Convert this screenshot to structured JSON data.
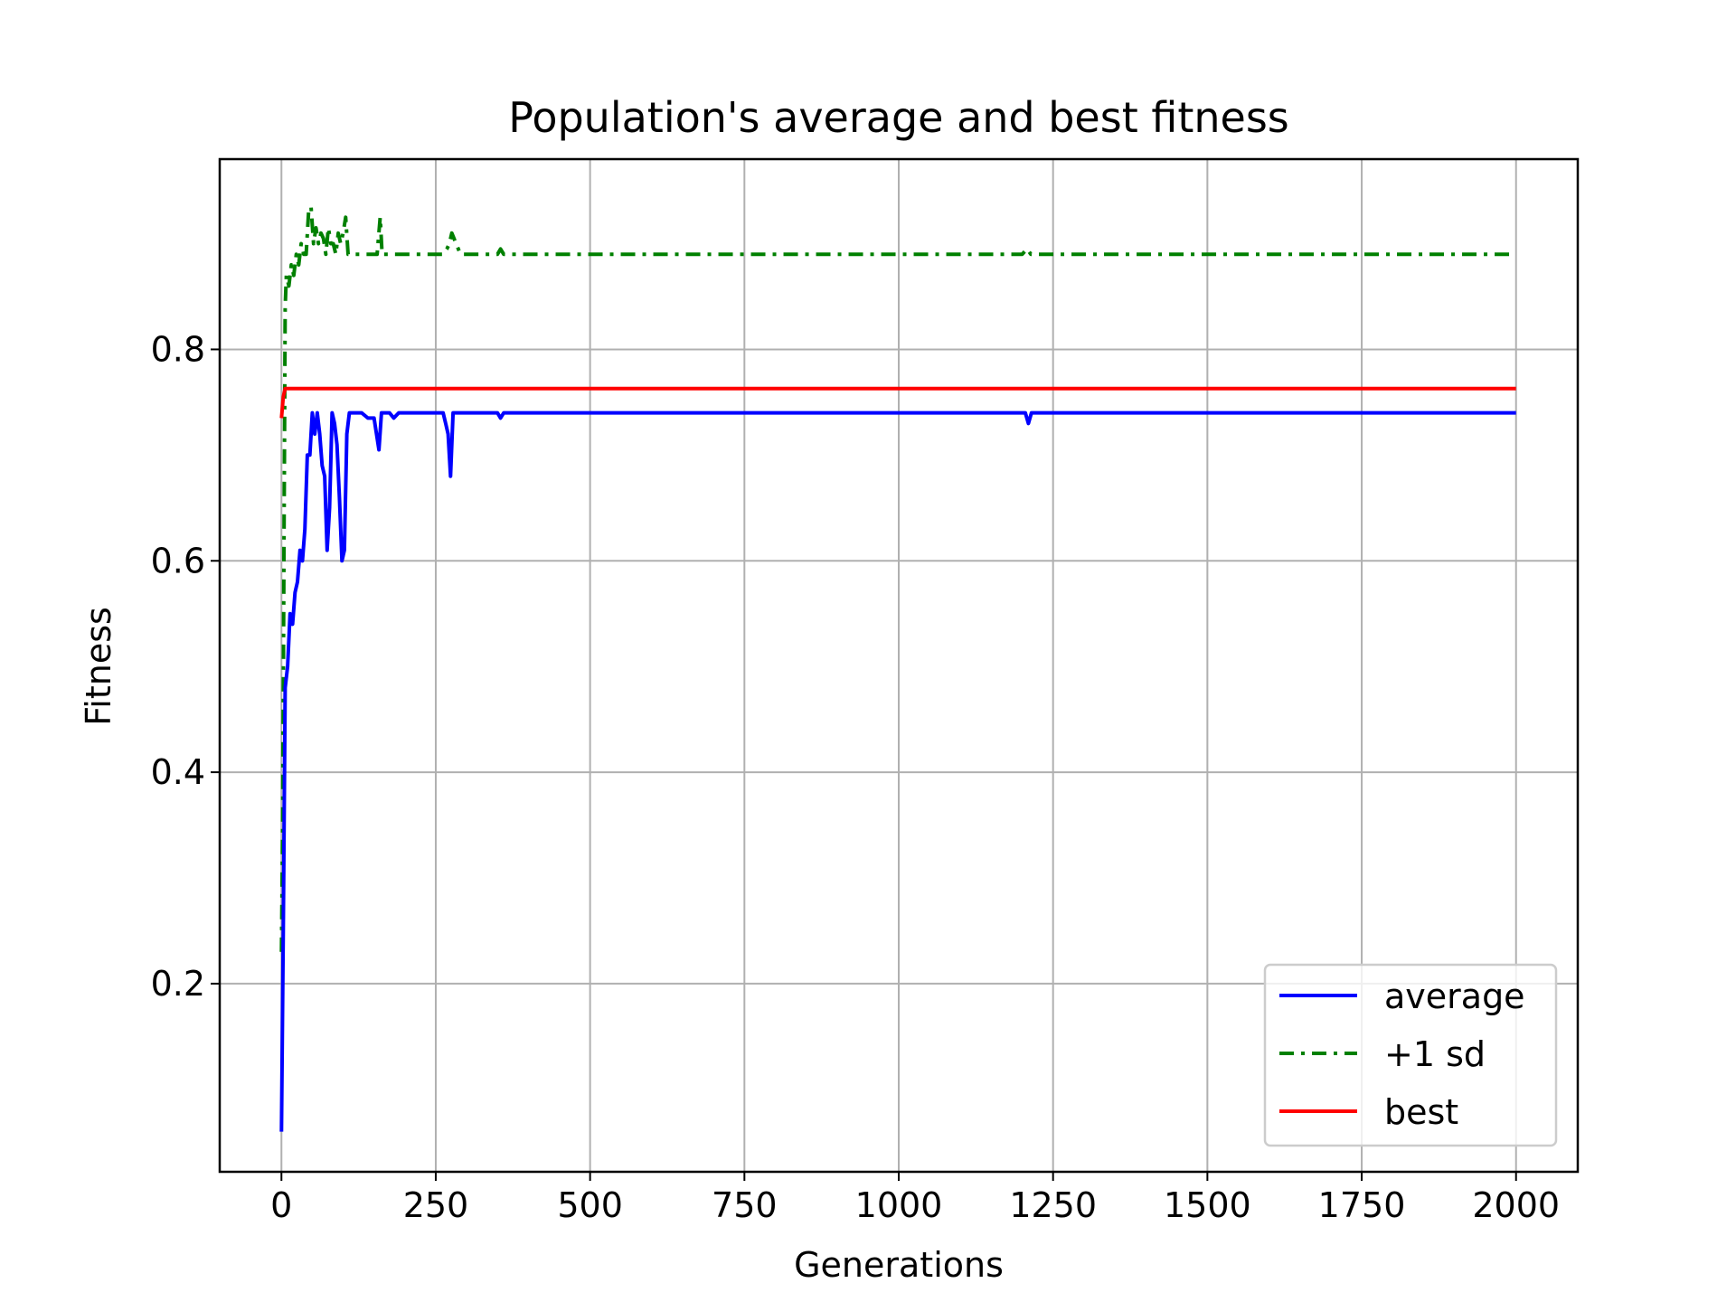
{
  "chart_data": {
    "type": "line",
    "title": "Population's average and best fitness",
    "xlabel": "Generations",
    "ylabel": "Fitness",
    "xlim": [
      -100,
      2100
    ],
    "ylim": [
      0.022,
      0.98
    ],
    "xticks": [
      0,
      250,
      500,
      750,
      1000,
      1250,
      1500,
      1750,
      2000
    ],
    "xtick_labels": [
      "0",
      "250",
      "500",
      "750",
      "1000",
      "1250",
      "1500",
      "1750",
      "2000"
    ],
    "yticks": [
      0.2,
      0.4,
      0.6,
      0.8
    ],
    "ytick_labels": [
      "0.2",
      "0.4",
      "0.6",
      "0.8"
    ],
    "grid": true,
    "legend_position": "lower-right",
    "series": [
      {
        "name": "average",
        "color": "#0000ff",
        "style": "solid",
        "x": [
          0,
          3,
          6,
          10,
          14,
          18,
          22,
          26,
          30,
          34,
          38,
          42,
          46,
          50,
          54,
          58,
          62,
          66,
          70,
          74,
          78,
          82,
          86,
          90,
          94,
          98,
          102,
          106,
          110,
          120,
          130,
          140,
          150,
          158,
          162,
          166,
          175,
          182,
          190,
          200,
          250,
          262,
          266,
          270,
          274,
          278,
          290,
          350,
          355,
          360,
          400,
          1205,
          1210,
          1215,
          2000
        ],
        "y": [
          0.06,
          0.25,
          0.48,
          0.5,
          0.55,
          0.54,
          0.57,
          0.58,
          0.61,
          0.6,
          0.63,
          0.7,
          0.7,
          0.74,
          0.72,
          0.74,
          0.72,
          0.69,
          0.68,
          0.61,
          0.65,
          0.74,
          0.73,
          0.71,
          0.66,
          0.6,
          0.61,
          0.72,
          0.74,
          0.74,
          0.74,
          0.735,
          0.735,
          0.705,
          0.74,
          0.74,
          0.74,
          0.735,
          0.74,
          0.74,
          0.74,
          0.74,
          0.73,
          0.72,
          0.68,
          0.74,
          0.74,
          0.74,
          0.735,
          0.74,
          0.74,
          0.74,
          0.73,
          0.74,
          0.74
        ]
      },
      {
        "name": "+1 sd",
        "color": "#008000",
        "style": "dashdot",
        "x": [
          0,
          2,
          4,
          6,
          8,
          12,
          16,
          20,
          24,
          28,
          32,
          36,
          40,
          44,
          48,
          52,
          56,
          60,
          64,
          68,
          72,
          76,
          80,
          84,
          88,
          92,
          96,
          100,
          104,
          108,
          112,
          120,
          140,
          155,
          160,
          163,
          166,
          175,
          250,
          262,
          268,
          272,
          276,
          290,
          350,
          355,
          360,
          1200,
          1208,
          1214,
          2000
        ],
        "y": [
          0.23,
          0.35,
          0.6,
          0.84,
          0.87,
          0.86,
          0.88,
          0.87,
          0.89,
          0.88,
          0.9,
          0.89,
          0.89,
          0.93,
          0.935,
          0.9,
          0.915,
          0.9,
          0.91,
          0.905,
          0.89,
          0.915,
          0.9,
          0.9,
          0.89,
          0.91,
          0.9,
          0.91,
          0.925,
          0.89,
          0.89,
          0.89,
          0.89,
          0.89,
          0.925,
          0.89,
          0.89,
          0.89,
          0.89,
          0.89,
          0.895,
          0.9,
          0.91,
          0.89,
          0.89,
          0.895,
          0.89,
          0.89,
          0.895,
          0.89,
          0.89
        ]
      },
      {
        "name": "best",
        "color": "#ff0000",
        "style": "solid",
        "x": [
          0,
          3,
          6,
          10,
          2000
        ],
        "y": [
          0.735,
          0.755,
          0.763,
          0.763,
          0.763
        ]
      }
    ]
  }
}
